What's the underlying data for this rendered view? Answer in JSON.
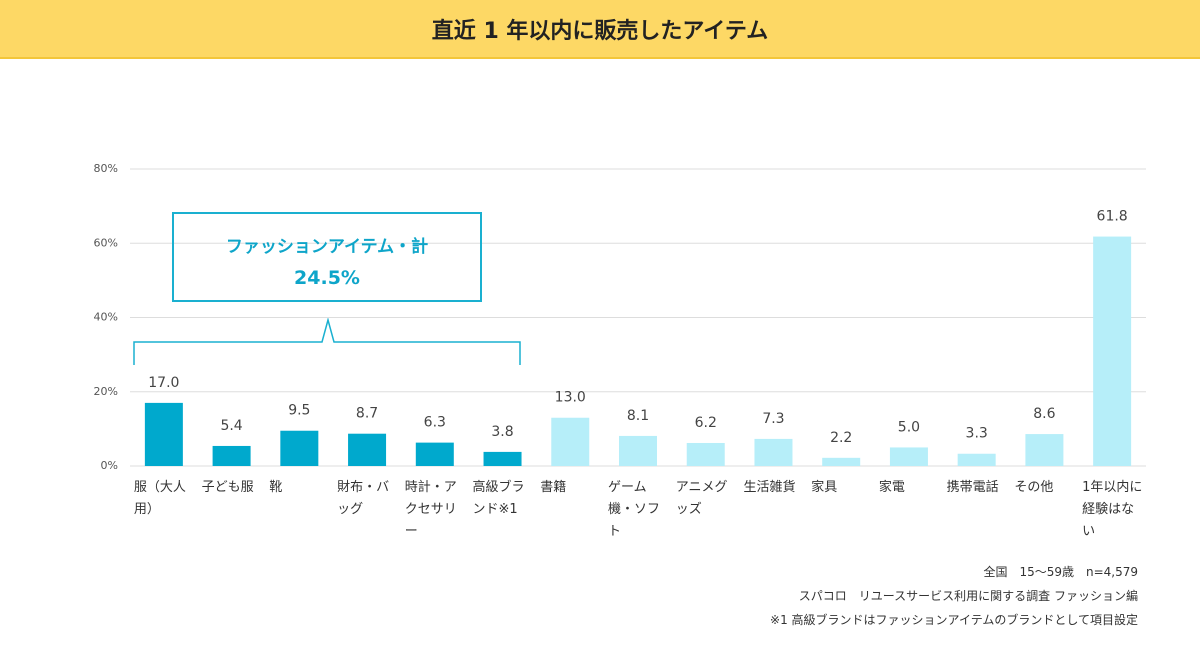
{
  "header": {
    "title": "直近 1 年以内に販売したアイテム"
  },
  "chart_data": {
    "type": "bar",
    "categories": [
      "服（大人用）",
      "子ども服",
      "靴",
      "財布・バッグ",
      "時計・アクセサリー",
      "高級ブランド※1",
      "書籍",
      "ゲーム機・ソフト",
      "アニメグッズ",
      "生活雑貨",
      "家具",
      "家電",
      "携帯電話",
      "その他",
      "1年以内に経験はない"
    ],
    "values": [
      17.0,
      5.4,
      9.5,
      8.7,
      6.3,
      3.8,
      13.0,
      8.1,
      6.2,
      7.3,
      2.2,
      5.0,
      3.3,
      8.6,
      61.8
    ],
    "value_labels": [
      "17.0",
      "5.4",
      "9.5",
      "8.7",
      "6.3",
      "3.8",
      "13.0",
      "8.1",
      "6.2",
      "7.3",
      "2.2",
      "5.0",
      "3.3",
      "8.6",
      "61.8"
    ],
    "colors": [
      "#00a9cd",
      "#00a9cd",
      "#00a9cd",
      "#00a9cd",
      "#00a9cd",
      "#00a9cd",
      "#b6eef9",
      "#b6eef9",
      "#b6eef9",
      "#b6eef9",
      "#b6eef9",
      "#b6eef9",
      "#b6eef9",
      "#b6eef9",
      "#b6eef9"
    ],
    "ylim": [
      0,
      80
    ],
    "yticks": [
      {
        "value": 0,
        "label": "0%"
      },
      {
        "value": 20,
        "label": "20%"
      },
      {
        "value": 40,
        "label": "40%"
      },
      {
        "value": 60,
        "label": "60%"
      },
      {
        "value": 80,
        "label": "80%"
      }
    ],
    "grid": true,
    "annotation": {
      "text": "ファッションアイテム・計",
      "total": "24.5%"
    },
    "notes": [
      "全国　15～59歳　n=4,579",
      "スパコロ　リユースサービス利用に関する調査 ファッション編",
      "※1 高級ブランドはファッションアイテムのブランドとして項目設定"
    ]
  }
}
